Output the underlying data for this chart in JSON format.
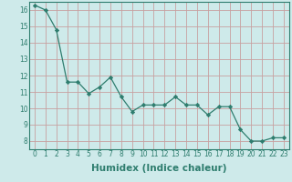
{
  "x": [
    0,
    1,
    2,
    3,
    4,
    5,
    6,
    7,
    8,
    9,
    10,
    11,
    12,
    13,
    14,
    15,
    16,
    17,
    18,
    19,
    20,
    21,
    22,
    23
  ],
  "y": [
    16.3,
    16.0,
    14.8,
    11.6,
    11.6,
    10.9,
    11.3,
    11.9,
    10.7,
    9.8,
    10.2,
    10.2,
    10.2,
    10.7,
    10.2,
    10.2,
    9.6,
    10.1,
    10.1,
    8.7,
    8.0,
    8.0,
    8.2,
    8.2
  ],
  "xlabel": "Humidex (Indice chaleur)",
  "ylim": [
    7.5,
    16.5
  ],
  "xlim": [
    -0.5,
    23.5
  ],
  "yticks": [
    8,
    9,
    10,
    11,
    12,
    13,
    14,
    15,
    16
  ],
  "xticks": [
    0,
    1,
    2,
    3,
    4,
    5,
    6,
    7,
    8,
    9,
    10,
    11,
    12,
    13,
    14,
    15,
    16,
    17,
    18,
    19,
    20,
    21,
    22,
    23
  ],
  "line_color": "#2e7d6e",
  "marker": "D",
  "marker_size": 2.2,
  "background_color": "#ceeaea",
  "grid_color": "#c8a0a0",
  "tick_label_fontsize": 5.5,
  "xlabel_fontsize": 7.5,
  "line_width": 0.9
}
